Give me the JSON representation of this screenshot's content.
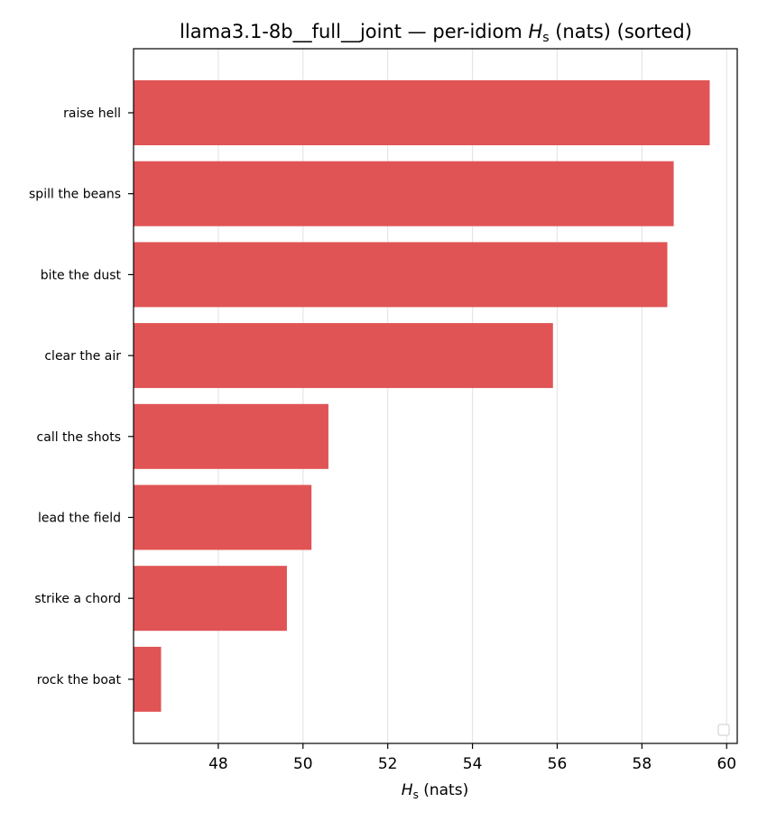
{
  "chart_data": {
    "type": "bar",
    "orientation": "horizontal",
    "title_prefix": "llama3.1-8b__full__joint — per-idiom ",
    "title_var": "H",
    "title_sub": "s",
    "title_suffix": " (nats) (sorted)",
    "xlabel_var": "H",
    "xlabel_sub": "s",
    "xlabel_suffix": " (nats)",
    "categories": [
      "raise hell",
      "spill the beans",
      "bite the dust",
      "clear the air",
      "call the shots",
      "lead the field",
      "strike a chord",
      "rock the boat"
    ],
    "values": [
      59.6,
      58.75,
      58.6,
      55.9,
      50.6,
      50.2,
      49.62,
      46.65
    ],
    "xlim": [
      46.0,
      60.25
    ],
    "xticks": [
      48,
      50,
      52,
      54,
      56,
      58,
      60
    ],
    "grid": "vertical",
    "bar_color": "#e05455",
    "legend": "lower-right (empty)"
  }
}
